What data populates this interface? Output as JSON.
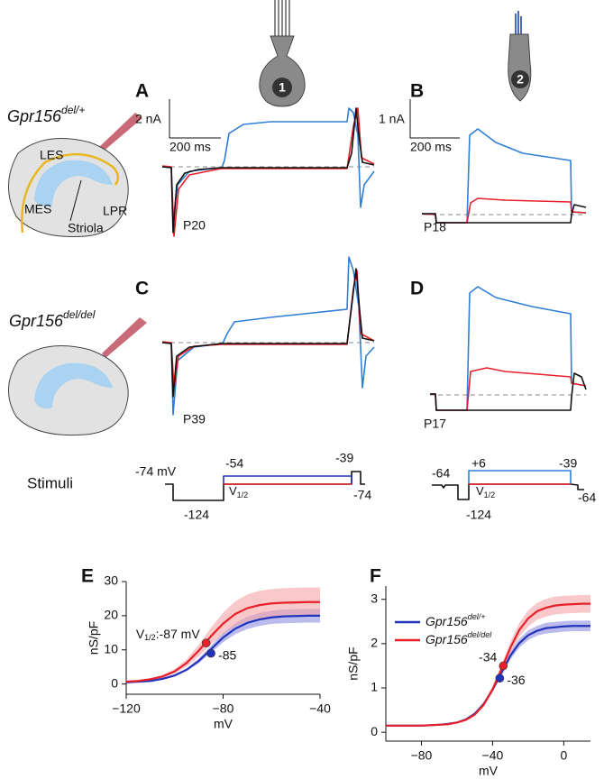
{
  "panels": [
    "A",
    "B",
    "C",
    "D"
  ],
  "cells": [
    "1",
    "2"
  ],
  "genotypes": [
    {
      "name": "Gpr156",
      "sup": "del/+"
    },
    {
      "name": "Gpr156",
      "sup": "del/del"
    }
  ],
  "diagram": {
    "labels": [
      "LES",
      "MES",
      "LPR",
      "Striola"
    ]
  },
  "scale_bars": [
    "2 nA",
    "200 ms",
    "1 nA",
    "200 ms"
  ],
  "ages": [
    "P20",
    "P18",
    "P39",
    "P17"
  ],
  "stimuli": {
    "title": "Stimuli",
    "labels": [
      "-74 mV",
      "-54",
      "-39",
      "-74",
      "-124",
      "-64",
      "+6",
      "-39",
      "-124",
      "-64"
    ],
    "v_half": {
      "main": "V",
      "sub": "1/2"
    }
  },
  "chart_data": [
    {
      "type": "line",
      "panel": "E",
      "xlabel": "mV",
      "ylabel": "nS/pF",
      "xlim": [
        -120,
        -40
      ],
      "ylim": [
        -3,
        30
      ],
      "xticks": [
        {
          "value": -120,
          "label": "−120"
        },
        {
          "value": -80,
          "label": "−80"
        },
        {
          "value": -40,
          "label": "−40"
        }
      ],
      "yticks": [
        0,
        10,
        20,
        30
      ],
      "x": [
        -120,
        -115,
        -110,
        -105,
        -100,
        -95,
        -90,
        -85,
        -80,
        -75,
        -70,
        -65,
        -60,
        -55,
        -50,
        -45,
        -40
      ],
      "series": [
        {
          "color": "#2233bb",
          "band_color": "#8e8fe0",
          "values": [
            0.5,
            0.7,
            0.9,
            1.5,
            2.5,
            4.2,
            6.8,
            10.2,
            13.6,
            16.2,
            17.9,
            18.9,
            19.5,
            19.8,
            19.9,
            20,
            20
          ],
          "lower": [
            0.4,
            0.6,
            0.8,
            1.3,
            2.2,
            3.8,
            6.1,
            9.2,
            12.2,
            14.6,
            16.1,
            17,
            17.6,
            17.8,
            17.9,
            18,
            18
          ],
          "upper": [
            0.6,
            0.8,
            1,
            1.7,
            2.8,
            4.6,
            7.5,
            11.2,
            15,
            17.8,
            19.7,
            20.8,
            21.5,
            21.8,
            21.9,
            22,
            22
          ]
        },
        {
          "color": "#e8202a",
          "band_color": "#f5a3a8",
          "values": [
            0.7,
            0.9,
            1.4,
            2.2,
            3.7,
            6.2,
            9.8,
            14,
            17.7,
            20.5,
            22.2,
            23.1,
            23.6,
            23.8,
            23.9,
            24,
            24
          ],
          "lower": [
            0.6,
            0.7,
            1.2,
            1.8,
            3.1,
            5.1,
            8.1,
            11.6,
            14.7,
            17,
            18.4,
            19.2,
            19.6,
            19.8,
            19.8,
            19.9,
            19.9
          ],
          "upper": [
            0.8,
            1.1,
            1.7,
            2.6,
            4.4,
            7.3,
            11.6,
            16.5,
            20.9,
            24.2,
            26.2,
            27.3,
            27.8,
            28.1,
            28.2,
            28.3,
            28.3
          ]
        }
      ],
      "points": [
        {
          "x": -87,
          "y": 12,
          "color": "#e8202a",
          "label_prefix": "V",
          "label_sub": "1/2",
          "label": ":-87 mV"
        },
        {
          "x": -85,
          "y": 9,
          "color": "#2233bb",
          "label": "-85"
        }
      ],
      "legend": false
    },
    {
      "type": "line",
      "panel": "F",
      "xlabel": "mV",
      "ylabel": "nS/pF",
      "xlim": [
        -100,
        15
      ],
      "ylim": [
        -0.2,
        3.3
      ],
      "xticks": [
        {
          "value": -80,
          "label": "−80"
        },
        {
          "value": -40,
          "label": "−40"
        },
        0
      ],
      "yticks": [
        0,
        1,
        2,
        3
      ],
      "x": [
        -100,
        -95,
        -90,
        -85,
        -80,
        -75,
        -70,
        -65,
        -60,
        -55,
        -50,
        -45,
        -40,
        -35,
        -30,
        -25,
        -20,
        -15,
        -10,
        -5,
        0,
        5,
        10,
        15
      ],
      "series": [
        {
          "name": "Gpr156",
          "name_sup": "del/+",
          "color": "#2233bb",
          "band_color": "#8e8fe0",
          "values": [
            0.15,
            0.15,
            0.15,
            0.15,
            0.15,
            0.16,
            0.17,
            0.19,
            0.22,
            0.29,
            0.42,
            0.64,
            0.96,
            1.35,
            1.73,
            2.01,
            2.19,
            2.29,
            2.35,
            2.37,
            2.39,
            2.4,
            2.4,
            2.4
          ],
          "lower": [
            0.14,
            0.14,
            0.14,
            0.14,
            0.14,
            0.15,
            0.16,
            0.18,
            0.21,
            0.28,
            0.4,
            0.61,
            0.91,
            1.28,
            1.64,
            1.91,
            2.08,
            2.18,
            2.23,
            2.25,
            2.27,
            2.28,
            2.28,
            2.28
          ],
          "upper": [
            0.16,
            0.16,
            0.16,
            0.16,
            0.16,
            0.17,
            0.18,
            0.2,
            0.23,
            0.3,
            0.44,
            0.67,
            1.01,
            1.42,
            1.82,
            2.11,
            2.3,
            2.4,
            2.47,
            2.49,
            2.51,
            2.52,
            2.52,
            2.52
          ]
        },
        {
          "name": "Gpr156",
          "name_sup": "del/del",
          "color": "#e8202a",
          "band_color": "#f5a3a8",
          "values": [
            0.15,
            0.15,
            0.15,
            0.15,
            0.15,
            0.16,
            0.17,
            0.18,
            0.22,
            0.28,
            0.4,
            0.62,
            0.97,
            1.43,
            1.91,
            2.31,
            2.57,
            2.73,
            2.81,
            2.86,
            2.88,
            2.89,
            2.9,
            2.9
          ],
          "lower": [
            0.14,
            0.14,
            0.14,
            0.14,
            0.14,
            0.15,
            0.16,
            0.17,
            0.2,
            0.26,
            0.37,
            0.58,
            0.9,
            1.33,
            1.78,
            2.15,
            2.39,
            2.54,
            2.61,
            2.66,
            2.68,
            2.69,
            2.7,
            2.7
          ],
          "upper": [
            0.16,
            0.16,
            0.16,
            0.16,
            0.16,
            0.17,
            0.18,
            0.19,
            0.24,
            0.3,
            0.43,
            0.66,
            1.04,
            1.53,
            2.04,
            2.47,
            2.75,
            2.92,
            3.01,
            3.06,
            3.08,
            3.09,
            3.1,
            3.1
          ]
        }
      ],
      "points": [
        {
          "x": -34,
          "y": 1.5,
          "color": "#e8202a",
          "label": "-34"
        },
        {
          "x": -36,
          "y": 1.22,
          "color": "#2233bb",
          "label": "-36"
        }
      ],
      "legend": true,
      "legend_corner": "upper left"
    }
  ]
}
